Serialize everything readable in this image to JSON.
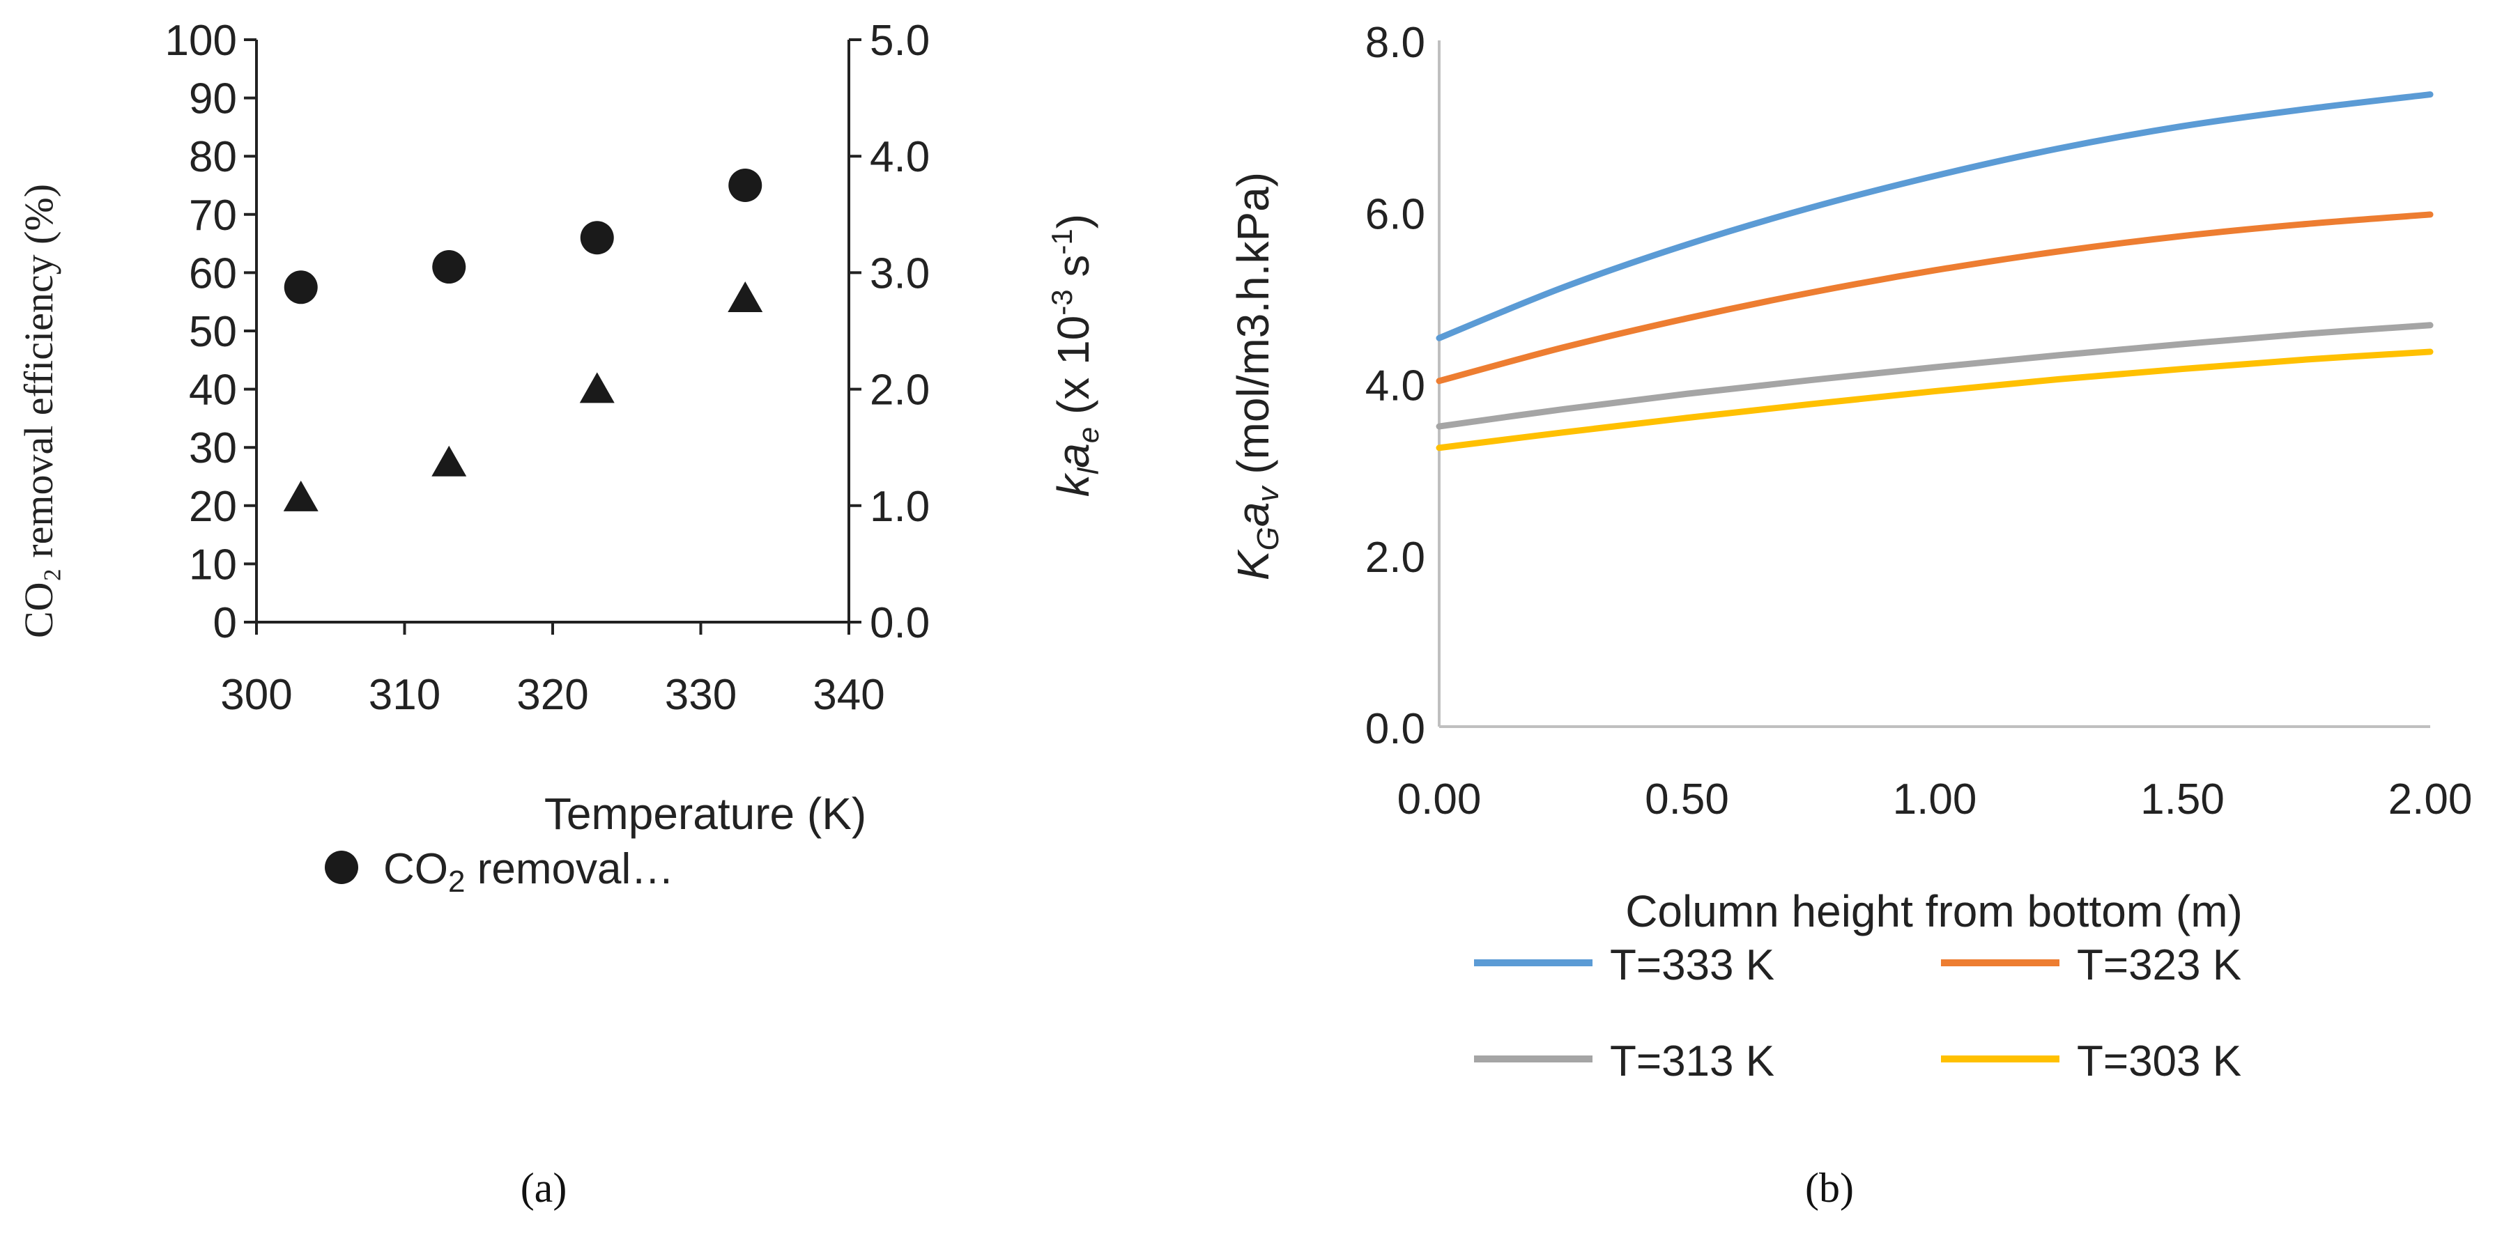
{
  "chart_data": [
    {
      "id": "a",
      "type": "scatter",
      "caption": "(a)",
      "xlabel": "Temperature (K)",
      "x_ticks": [
        "300",
        "310",
        "320",
        "330",
        "340"
      ],
      "xlim": [
        300,
        340
      ],
      "y_left_label": "CO₂ removal efficiency (%)",
      "y_left_ticks": [
        "0",
        "10",
        "20",
        "30",
        "40",
        "50",
        "60",
        "70",
        "80",
        "90",
        "100"
      ],
      "y_left_lim": [
        0,
        100
      ],
      "y_right_label": "k_l a_e (x 10⁻³ s⁻¹)",
      "y_right_label_parts": {
        "k": "k",
        "l": "l",
        "a": "a",
        "e": "e",
        "rest": " (x 10",
        "exp1": "-3",
        "s": " s",
        "exp2": "-1",
        "close": ")"
      },
      "y_right_ticks": [
        "0.0",
        "1.0",
        "2.0",
        "3.0",
        "4.0",
        "5.0"
      ],
      "y_right_lim": [
        0,
        5
      ],
      "series": [
        {
          "name": "CO₂ removal...",
          "marker": "circle",
          "axis": "left",
          "x": [
            303,
            313,
            323,
            333
          ],
          "y": [
            57.5,
            61,
            66,
            75
          ]
        },
        {
          "name": "k_l a_e",
          "marker": "triangle",
          "axis": "right",
          "x": [
            303,
            313,
            323,
            333
          ],
          "y": [
            1.07,
            1.37,
            2.0,
            2.78
          ]
        }
      ],
      "legend": {
        "label_prefix": "CO",
        "label_sub": "2",
        "label_suffix": " removal…"
      }
    },
    {
      "id": "b",
      "type": "line",
      "caption": "(b)",
      "xlabel": "Column height from bottom (m)",
      "x_ticks": [
        "0.00",
        "0.50",
        "1.00",
        "1.50",
        "2.00"
      ],
      "xlim": [
        0,
        2
      ],
      "ylabel": "K_G a_v (mol/m3.h.kPa)",
      "ylabel_parts": {
        "K": "K",
        "G": "G",
        "a": "a",
        "v": "v",
        "rest": " (mol/m3.h.kPa)"
      },
      "y_ticks": [
        "0.0",
        "2.0",
        "4.0",
        "6.0",
        "8.0"
      ],
      "ylim": [
        0,
        8
      ],
      "series": [
        {
          "name": "T=333 K",
          "color": "#5b9bd5",
          "x": [
            0,
            0.25,
            0.5,
            0.75,
            1.0,
            1.25,
            1.5,
            1.75,
            2.0
          ],
          "y": [
            4.53,
            5.12,
            5.62,
            6.05,
            6.42,
            6.74,
            7.0,
            7.2,
            7.37
          ]
        },
        {
          "name": "T=323 K",
          "color": "#ed7d31",
          "x": [
            0,
            0.25,
            0.5,
            0.75,
            1.0,
            1.25,
            1.5,
            1.75,
            2.0
          ],
          "y": [
            4.03,
            4.42,
            4.76,
            5.06,
            5.32,
            5.54,
            5.72,
            5.86,
            5.97
          ]
        },
        {
          "name": "T=313 K",
          "color": "#a5a5a5",
          "x": [
            0,
            0.25,
            0.5,
            0.75,
            1.0,
            1.25,
            1.5,
            1.75,
            2.0
          ],
          "y": [
            3.5,
            3.7,
            3.88,
            4.04,
            4.19,
            4.33,
            4.46,
            4.58,
            4.68
          ]
        },
        {
          "name": "T=303 K",
          "color": "#ffc000",
          "x": [
            0,
            0.25,
            0.5,
            0.75,
            1.0,
            1.25,
            1.5,
            1.75,
            2.0
          ],
          "y": [
            3.25,
            3.43,
            3.6,
            3.76,
            3.91,
            4.05,
            4.17,
            4.28,
            4.37
          ]
        }
      ]
    }
  ]
}
